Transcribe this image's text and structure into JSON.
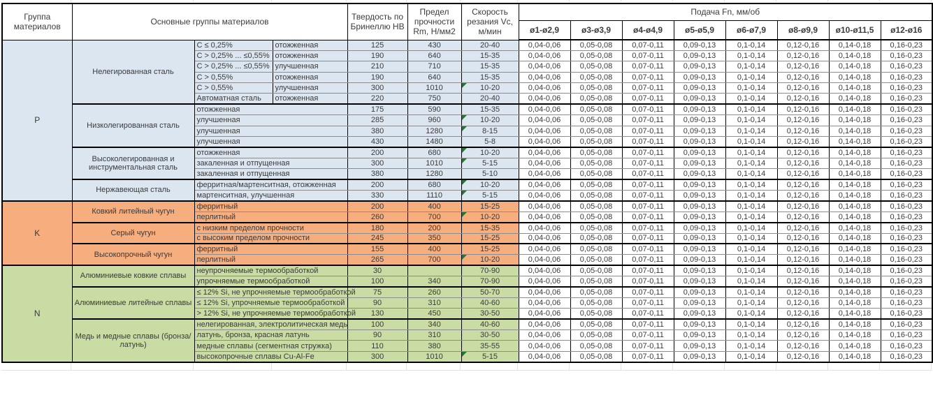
{
  "table": {
    "headers": {
      "group": "Группа материалов",
      "materials": "Основные группы материалов",
      "hardness": "Твердость по Бринеллю HB",
      "strength": "Предел прочности Rm, Н/мм2",
      "speed": "Скорость резания Vc, м/мин",
      "feed": "Подача Fn, мм/об",
      "feed_cols": [
        "ø1-ø2,9",
        "ø3-ø3,9",
        "ø4-ø4,9",
        "ø5-ø5,9",
        "ø6-ø7,9",
        "ø8-ø9,9",
        "ø10-ø11,5",
        "ø12-ø16"
      ]
    },
    "feed_values_all_rows": [
      "0,04-0,06",
      "0,05-0,08",
      "0,07-0,11",
      "0,09-0,13",
      "0,1-0,14",
      "0,12-0,16",
      "0,14-0,18",
      "0,16-0,23"
    ],
    "note_indicator_color": "#1f7a33",
    "groups": [
      {
        "code": "P",
        "color": "#dce6f1",
        "subgroups": [
          {
            "name": "Нелегированная сталь",
            "rows": [
              {
                "spec": "C ≤ 0,25%",
                "state": "отожженная",
                "hb": "125",
                "rm": "430",
                "vc": "20-40",
                "note": false
              },
              {
                "spec": "C > 0,25% ... ≤0,55%",
                "state": "отожженная",
                "hb": "190",
                "rm": "640",
                "vc": "15-35",
                "note": false
              },
              {
                "spec": "C > 0,25% ... ≤0,55%",
                "state": "улучшенная",
                "hb": "210",
                "rm": "710",
                "vc": "15-35",
                "note": false
              },
              {
                "spec": "C > 0,55%",
                "state": "отожженная",
                "hb": "190",
                "rm": "640",
                "vc": "15-35",
                "note": false
              },
              {
                "spec": "C > 0,55%",
                "state": "улучшенная",
                "hb": "300",
                "rm": "1010",
                "vc": "10-20",
                "note": true
              },
              {
                "spec": "Автоматная сталь",
                "state": "отожженная",
                "hb": "220",
                "rm": "750",
                "vc": "20-40",
                "note": false
              }
            ]
          },
          {
            "name": "Низколегированная сталь",
            "rows": [
              {
                "desc": "отожженная",
                "hb": "175",
                "rm": "590",
                "vc": "15-35",
                "note": false
              },
              {
                "desc": "улучшенная",
                "hb": "285",
                "rm": "960",
                "vc": "10-20",
                "note": true
              },
              {
                "desc": "улучшенная",
                "hb": "380",
                "rm": "1280",
                "vc": "8-15",
                "note": true
              },
              {
                "desc": "улучшенная",
                "hb": "430",
                "rm": "1480",
                "vc": "5-8",
                "note": false
              }
            ]
          },
          {
            "name": "Высоколегированная и инструментальная сталь",
            "rows": [
              {
                "desc": "отожженная",
                "hb": "200",
                "rm": "680",
                "vc": "10-20",
                "note": true
              },
              {
                "desc": "закаленная и отпущенная",
                "hb": "300",
                "rm": "1010",
                "vc": "5-15",
                "note": true
              },
              {
                "desc": "закаленная и отпущенная",
                "hb": "380",
                "rm": "1280",
                "vc": "5-10",
                "note": false
              }
            ]
          },
          {
            "name": "Нержавеющая сталь",
            "rows": [
              {
                "desc": "ферритная/мартенситная, отожженная",
                "hb": "200",
                "rm": "680",
                "vc": "10-20",
                "note": true
              },
              {
                "desc": "мартенситная, улучшенная",
                "hb": "330",
                "rm": "1110",
                "vc": "5-15",
                "note": true
              }
            ]
          }
        ]
      },
      {
        "code": "K",
        "color": "#f6ae7f",
        "subgroups": [
          {
            "name": "Ковкий литейный чугун",
            "rows": [
              {
                "desc": "ферритный",
                "hb": "200",
                "rm": "400",
                "vc": "15-25",
                "note": false
              },
              {
                "desc": "перлитный",
                "hb": "260",
                "rm": "700",
                "vc": "10-20",
                "note": true
              }
            ]
          },
          {
            "name": "Серый чугун",
            "rows": [
              {
                "desc": "с низким пределом прочности",
                "hb": "180",
                "rm": "200",
                "vc": "15-35",
                "note": false
              },
              {
                "desc": "с высоким пределом прочности",
                "hb": "245",
                "rm": "350",
                "vc": "15-25",
                "note": false
              }
            ]
          },
          {
            "name": "Высокопрочный чугун",
            "rows": [
              {
                "desc": "ферритный",
                "hb": "155",
                "rm": "400",
                "vc": "15-25",
                "note": false
              },
              {
                "desc": "перлитный",
                "hb": "265",
                "rm": "700",
                "vc": "10-20",
                "note": true
              }
            ]
          }
        ]
      },
      {
        "code": "N",
        "color": "#c9dca4",
        "subgroups": [
          {
            "name": "Алюминиевые ковкие сплавы",
            "rows": [
              {
                "desc": "неупрочняемые термообработкой",
                "hb": "30",
                "rm": "",
                "vc": "70-90",
                "note": false
              },
              {
                "desc": "упрочняемые термообработкой",
                "hb": "100",
                "rm": "340",
                "vc": "70-90",
                "note": false
              }
            ]
          },
          {
            "name": "Алюминиевые литейные сплавы",
            "rows": [
              {
                "desc": "≤ 12% Si, не упрочняемые термообработкой",
                "hb": "75",
                "rm": "260",
                "vc": "50-70",
                "note": false
              },
              {
                "desc": "≤ 12% Si, упрочняемые термообработкой",
                "hb": "90",
                "rm": "310",
                "vc": "40-60",
                "note": false
              },
              {
                "desc": "> 12% Si, не упрочняемые термообработкой",
                "hb": "130",
                "rm": "450",
                "vc": "30-50",
                "note": false
              }
            ]
          },
          {
            "name": "Медь и медные сплавы (бронза/латунь)",
            "rows": [
              {
                "desc": "нелегированная, электролитическая медь",
                "hb": "100",
                "rm": "340",
                "vc": "40-60",
                "note": false
              },
              {
                "desc": "латунь, бронза, красная латунь",
                "hb": "90",
                "rm": "310",
                "vc": "30-50",
                "note": false
              },
              {
                "desc": "медные сплавы (сегментная стружка)",
                "hb": "110",
                "rm": "380",
                "vc": "35-55",
                "note": false
              },
              {
                "desc": "высокопрочные сплавы Cu-Al-Fe",
                "hb": "300",
                "rm": "1010",
                "vc": "5-15",
                "note": true
              }
            ]
          }
        ]
      }
    ]
  }
}
